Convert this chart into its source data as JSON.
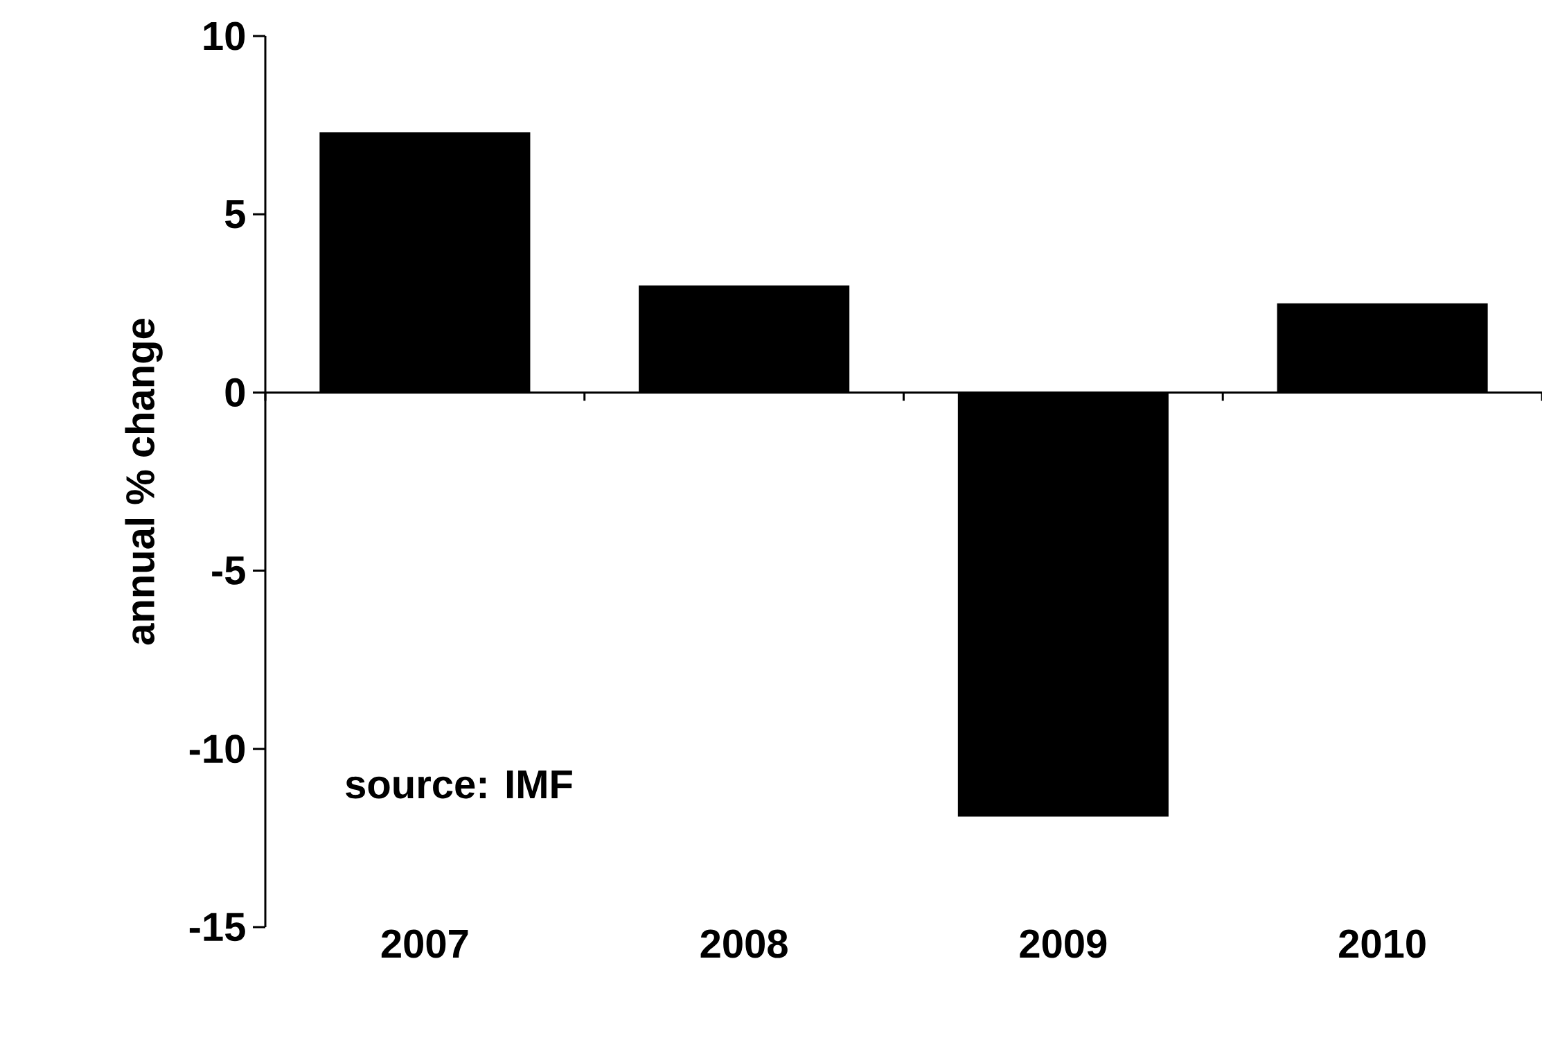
{
  "chart_data": {
    "type": "bar",
    "ylabel": "annual % change",
    "categories": [
      "2007",
      "2008",
      "2009",
      "2010"
    ],
    "values": [
      7.3,
      3.0,
      -11.9,
      2.5
    ],
    "color": "#000000",
    "ylim": [
      -15,
      10
    ],
    "yticks": [
      -15,
      -10,
      -5,
      0,
      5,
      10
    ],
    "annotations": [
      "source: IMF"
    ]
  }
}
